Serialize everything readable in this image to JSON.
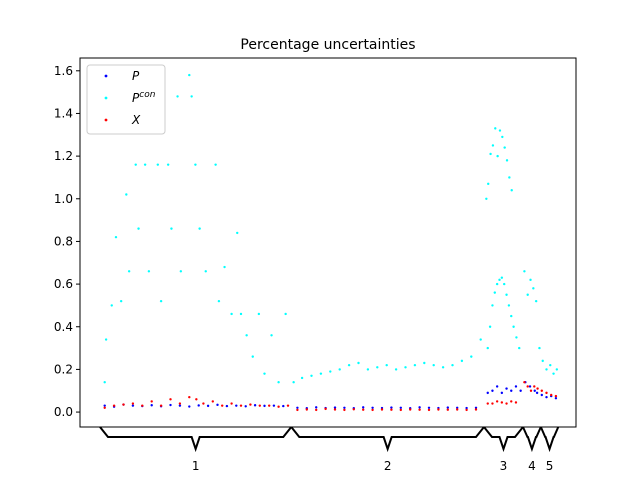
{
  "chart_data": {
    "type": "scatter",
    "title": "Percentage uncertainties",
    "xlabel": "",
    "ylabel": "",
    "ylim": [
      -0.07,
      1.66
    ],
    "xlim": [
      0,
      100
    ],
    "yticks": [
      0.0,
      0.2,
      0.4,
      0.6,
      0.8,
      1.0,
      1.2,
      1.4,
      1.6
    ],
    "ytick_labels": [
      "0.0",
      "0.2",
      "0.4",
      "0.6",
      "0.8",
      "1.0",
      "1.2",
      "1.4",
      "1.6"
    ],
    "grid": false,
    "legend": {
      "placement": "top-left",
      "entries": [
        {
          "label": "P",
          "sup": "",
          "color": "#0000ff"
        },
        {
          "label": "P",
          "sup": "con",
          "color": "#00ffff"
        },
        {
          "label": "X",
          "sup": "",
          "color": "#ff0000"
        }
      ]
    },
    "groups": [
      {
        "label": "1",
        "x_start": 0.0,
        "x_end": 40.7
      },
      {
        "label": "2",
        "x_start": 40.7,
        "x_end": 81.7
      },
      {
        "label": "3",
        "x_start": 81.7,
        "x_end": 90.0
      },
      {
        "label": "4",
        "x_start": 90.0,
        "x_end": 93.8
      },
      {
        "label": "5",
        "x_start": 93.8,
        "x_end": 97.5
      }
    ],
    "series": [
      {
        "name": "P",
        "color": "#0000ff",
        "points": [
          [
            1,
            0.03
          ],
          [
            3,
            0.025
          ],
          [
            5,
            0.035
          ],
          [
            7,
            0.03
          ],
          [
            9,
            0.028
          ],
          [
            11,
            0.032
          ],
          [
            13,
            0.027
          ],
          [
            15,
            0.033
          ],
          [
            17,
            0.03
          ],
          [
            19,
            0.026
          ],
          [
            21,
            0.031
          ],
          [
            23,
            0.029
          ],
          [
            25,
            0.034
          ],
          [
            27,
            0.028
          ],
          [
            29,
            0.03
          ],
          [
            31,
            0.027
          ],
          [
            33,
            0.032
          ],
          [
            35,
            0.029
          ],
          [
            37,
            0.03
          ],
          [
            39,
            0.028
          ],
          [
            42,
            0.02
          ],
          [
            44,
            0.018
          ],
          [
            46,
            0.022
          ],
          [
            48,
            0.019
          ],
          [
            50,
            0.021
          ],
          [
            52,
            0.02
          ],
          [
            54,
            0.018
          ],
          [
            56,
            0.022
          ],
          [
            58,
            0.02
          ],
          [
            60,
            0.019
          ],
          [
            62,
            0.021
          ],
          [
            64,
            0.02
          ],
          [
            66,
            0.018
          ],
          [
            68,
            0.022
          ],
          [
            70,
            0.02
          ],
          [
            72,
            0.019
          ],
          [
            74,
            0.021
          ],
          [
            76,
            0.02
          ],
          [
            78,
            0.019
          ],
          [
            80,
            0.02
          ],
          [
            82.5,
            0.09
          ],
          [
            83.5,
            0.1
          ],
          [
            84.5,
            0.12
          ],
          [
            85.5,
            0.09
          ],
          [
            86.5,
            0.11
          ],
          [
            87.5,
            0.1
          ],
          [
            88.5,
            0.12
          ],
          [
            89.5,
            0.1
          ],
          [
            90.5,
            0.14
          ],
          [
            91.5,
            0.12
          ],
          [
            92.5,
            0.1
          ],
          [
            93,
            0.09
          ],
          [
            94,
            0.08
          ],
          [
            95,
            0.07
          ],
          [
            96,
            0.075
          ],
          [
            97,
            0.065
          ]
        ]
      },
      {
        "name": "P^con",
        "color": "#00ffff",
        "points": [
          [
            1,
            0.14
          ],
          [
            1.3,
            0.34
          ],
          [
            2.5,
            0.5
          ],
          [
            3.4,
            0.82
          ],
          [
            4.5,
            0.52
          ],
          [
            5.6,
            1.02
          ],
          [
            6.2,
            0.66
          ],
          [
            7.6,
            1.16
          ],
          [
            8.2,
            0.86
          ],
          [
            9.6,
            1.16
          ],
          [
            10.4,
            0.66
          ],
          [
            12.3,
            1.16
          ],
          [
            13,
            0.52
          ],
          [
            14.5,
            1.16
          ],
          [
            15.2,
            0.86
          ],
          [
            16.5,
            1.48
          ],
          [
            17.2,
            0.66
          ],
          [
            19,
            1.58
          ],
          [
            19.5,
            1.48
          ],
          [
            20.3,
            1.16
          ],
          [
            21.2,
            0.86
          ],
          [
            22.5,
            0.66
          ],
          [
            24.6,
            1.16
          ],
          [
            25.3,
            0.52
          ],
          [
            26.5,
            0.68
          ],
          [
            28,
            0.46
          ],
          [
            29.2,
            0.84
          ],
          [
            30,
            0.46
          ],
          [
            31.2,
            0.36
          ],
          [
            32.5,
            0.26
          ],
          [
            33.8,
            0.46
          ],
          [
            35,
            0.18
          ],
          [
            36.5,
            0.36
          ],
          [
            38,
            0.14
          ],
          [
            39.5,
            0.46
          ],
          [
            41.2,
            0.14
          ],
          [
            43,
            0.16
          ],
          [
            45,
            0.17
          ],
          [
            47,
            0.18
          ],
          [
            49,
            0.19
          ],
          [
            51,
            0.2
          ],
          [
            53,
            0.22
          ],
          [
            55,
            0.23
          ],
          [
            57,
            0.2
          ],
          [
            59,
            0.21
          ],
          [
            61,
            0.22
          ],
          [
            63,
            0.2
          ],
          [
            65,
            0.21
          ],
          [
            67,
            0.22
          ],
          [
            69,
            0.23
          ],
          [
            71,
            0.22
          ],
          [
            73,
            0.21
          ],
          [
            75,
            0.22
          ],
          [
            77,
            0.24
          ],
          [
            79,
            0.26
          ],
          [
            81,
            0.34
          ],
          [
            82.2,
            1.0
          ],
          [
            82.6,
            1.07
          ],
          [
            83.1,
            1.21
          ],
          [
            83.6,
            1.25
          ],
          [
            84.1,
            1.33
          ],
          [
            84.6,
            1.2
          ],
          [
            85.1,
            1.32
          ],
          [
            85.6,
            1.29
          ],
          [
            86.1,
            1.24
          ],
          [
            86.6,
            1.18
          ],
          [
            87.1,
            1.1
          ],
          [
            87.6,
            1.04
          ],
          [
            82.5,
            0.3
          ],
          [
            83,
            0.4
          ],
          [
            83.5,
            0.5
          ],
          [
            84,
            0.56
          ],
          [
            84.5,
            0.6
          ],
          [
            85,
            0.62
          ],
          [
            85.5,
            0.63
          ],
          [
            86,
            0.6
          ],
          [
            86.5,
            0.55
          ],
          [
            87,
            0.5
          ],
          [
            87.5,
            0.45
          ],
          [
            88,
            0.4
          ],
          [
            88.6,
            0.35
          ],
          [
            89.2,
            0.3
          ],
          [
            90.3,
            0.66
          ],
          [
            91,
            0.55
          ],
          [
            91.6,
            0.62
          ],
          [
            92.2,
            0.58
          ],
          [
            92.8,
            0.52
          ],
          [
            93.5,
            0.3
          ],
          [
            94.2,
            0.24
          ],
          [
            95,
            0.2
          ],
          [
            95.8,
            0.22
          ],
          [
            96.5,
            0.18
          ],
          [
            97.2,
            0.2
          ]
        ]
      },
      {
        "name": "X",
        "color": "#ff0000",
        "points": [
          [
            1,
            0.02
          ],
          [
            3,
            0.03
          ],
          [
            5,
            0.035
          ],
          [
            7,
            0.04
          ],
          [
            9,
            0.03
          ],
          [
            11,
            0.05
          ],
          [
            13,
            0.03
          ],
          [
            15,
            0.06
          ],
          [
            17,
            0.04
          ],
          [
            19,
            0.07
          ],
          [
            20.5,
            0.06
          ],
          [
            22,
            0.04
          ],
          [
            24,
            0.05
          ],
          [
            26,
            0.03
          ],
          [
            28,
            0.04
          ],
          [
            30,
            0.03
          ],
          [
            32,
            0.035
          ],
          [
            34,
            0.03
          ],
          [
            36,
            0.03
          ],
          [
            38,
            0.025
          ],
          [
            40,
            0.03
          ],
          [
            42,
            0.01
          ],
          [
            44,
            0.012
          ],
          [
            46,
            0.01
          ],
          [
            48,
            0.015
          ],
          [
            50,
            0.012
          ],
          [
            52,
            0.01
          ],
          [
            54,
            0.013
          ],
          [
            56,
            0.011
          ],
          [
            58,
            0.01
          ],
          [
            60,
            0.012
          ],
          [
            62,
            0.011
          ],
          [
            64,
            0.01
          ],
          [
            66,
            0.012
          ],
          [
            68,
            0.011
          ],
          [
            70,
            0.01
          ],
          [
            72,
            0.012
          ],
          [
            74,
            0.011
          ],
          [
            76,
            0.012
          ],
          [
            78,
            0.01
          ],
          [
            80,
            0.012
          ],
          [
            82.5,
            0.04
          ],
          [
            83.5,
            0.04
          ],
          [
            84.5,
            0.05
          ],
          [
            85.5,
            0.045
          ],
          [
            86.5,
            0.04
          ],
          [
            87.5,
            0.05
          ],
          [
            88.5,
            0.045
          ],
          [
            90.3,
            0.14
          ],
          [
            91,
            0.12
          ],
          [
            91.7,
            0.1
          ],
          [
            92.4,
            0.12
          ],
          [
            93.1,
            0.11
          ],
          [
            94,
            0.1
          ],
          [
            95,
            0.09
          ],
          [
            96,
            0.08
          ],
          [
            97,
            0.075
          ]
        ]
      }
    ]
  }
}
